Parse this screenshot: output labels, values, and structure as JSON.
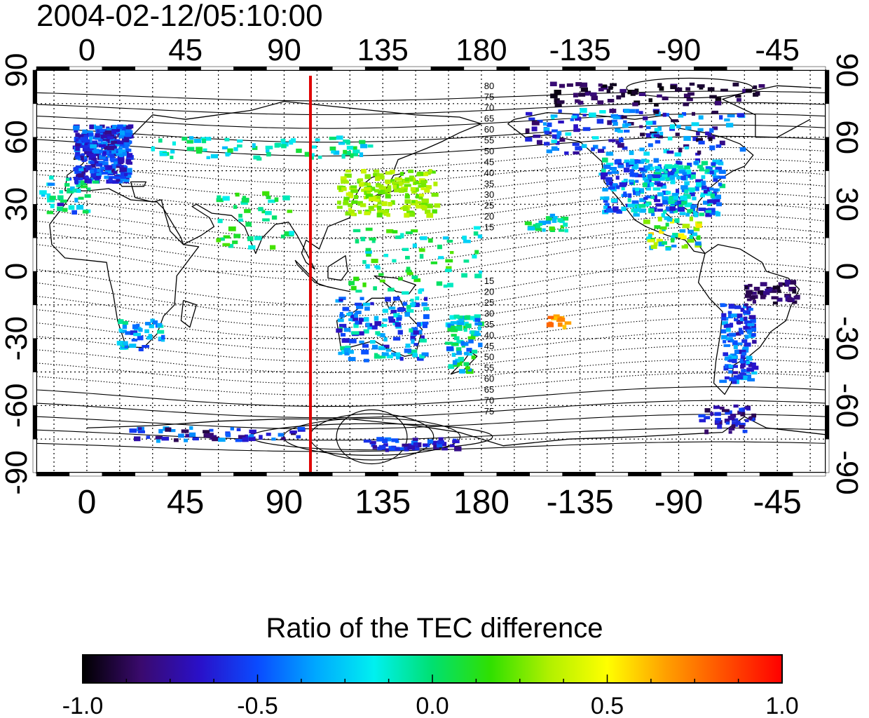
{
  "title": "2004-02-12/05:10:00",
  "map": {
    "top_tick_labels": [
      "0",
      "45",
      "90",
      "135",
      "180",
      "-135",
      "-90",
      "-45"
    ],
    "bottom_tick_labels": [
      "0",
      "45",
      "90",
      "135",
      "180",
      "-135",
      "-90",
      "-45"
    ],
    "left_tick_labels": [
      "90",
      "60",
      "30",
      "0",
      "-30",
      "-60",
      "-90"
    ],
    "right_tick_labels": [
      "90",
      "60",
      "30",
      "0",
      "-30",
      "-60",
      "-90"
    ],
    "lon_ticks_deg": [
      0,
      45,
      90,
      135,
      180,
      225,
      270,
      315
    ],
    "lat_ticks_deg": [
      90,
      60,
      30,
      0,
      -30,
      -60,
      -90
    ],
    "lon_range_deg": [
      -23,
      337
    ],
    "lat_range_deg": [
      -90,
      90
    ],
    "grid": true,
    "marker_longitude_deg": 102,
    "marker_color": "#e00000",
    "north_contour_labels": [
      "80",
      "75",
      "70",
      "65",
      "60",
      "55",
      "50",
      "45",
      "40",
      "35",
      "30",
      "25",
      "20",
      "15"
    ],
    "south_contour_labels": [
      "15",
      "20",
      "25",
      "30",
      "35",
      "40",
      "45",
      "50",
      "55",
      "60",
      "65",
      "70",
      "75"
    ]
  },
  "colorbar": {
    "title": "Ratio of the TEC difference",
    "tick_labels": [
      "-1.0",
      "-0.5",
      "0.0",
      "0.5",
      "1.0"
    ],
    "range": [
      -1.0,
      1.0
    ],
    "colors": [
      "#000000",
      "#3a0a6e",
      "#2a10c8",
      "#0a4bff",
      "#00a8ff",
      "#00f0f0",
      "#00e070",
      "#30e000",
      "#b0f000",
      "#ffff00",
      "#ffa000",
      "#ff5000",
      "#ff0000"
    ]
  }
}
